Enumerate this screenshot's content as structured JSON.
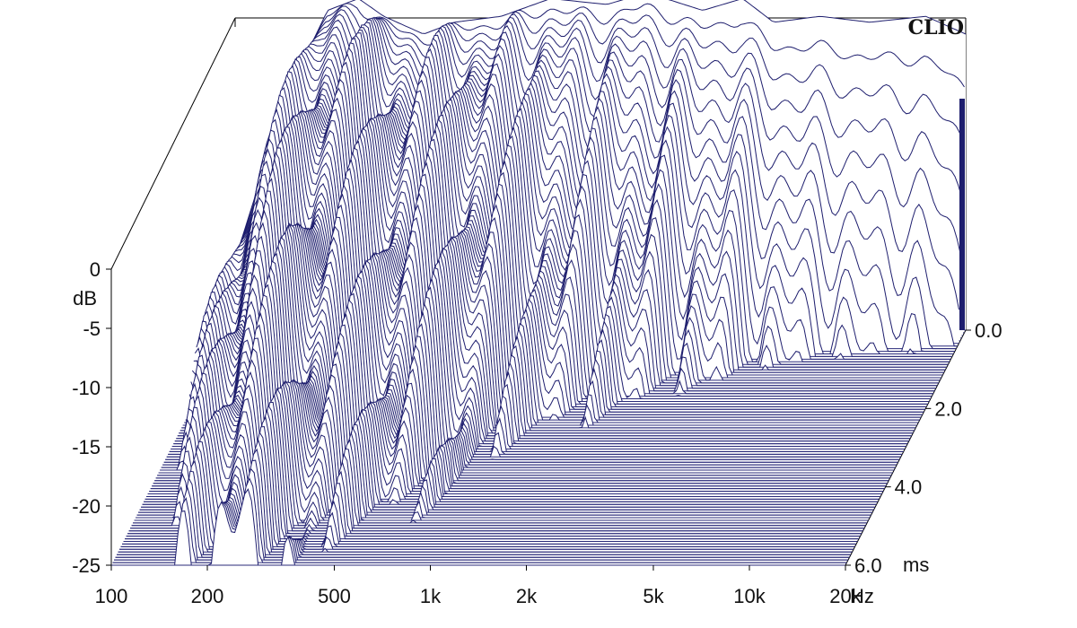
{
  "chart_data": {
    "type": "waterfall",
    "brand": "CLIO",
    "ylabel": "dB",
    "x_scale": "log",
    "x_unit_label": "Hz",
    "xlim": [
      100,
      20000
    ],
    "x_ticks": [
      {
        "value": 100,
        "label": "100"
      },
      {
        "value": 200,
        "label": "200"
      },
      {
        "value": 500,
        "label": "500"
      },
      {
        "value": 1000,
        "label": "1k"
      },
      {
        "value": 2000,
        "label": "2k"
      },
      {
        "value": 5000,
        "label": "5k"
      },
      {
        "value": 10000,
        "label": "10k"
      },
      {
        "value": 20000,
        "label": "20k"
      }
    ],
    "ylim": [
      -25,
      0
    ],
    "y_ticks": [
      0,
      -5,
      -10,
      -15,
      -20,
      -25
    ],
    "time_unit_label": "ms",
    "tlim": [
      0,
      6
    ],
    "time_ticks": [
      {
        "value": 0,
        "label": "0.0"
      },
      {
        "value": 2,
        "label": "2.0"
      },
      {
        "value": 4,
        "label": "4.0"
      },
      {
        "value": 6,
        "label": "6.0"
      }
    ],
    "slice_count": 90,
    "initial_response": {
      "freq": [
        100,
        150,
        200,
        250,
        300,
        400,
        500,
        700,
        1000,
        1500,
        2000,
        3000,
        4000,
        5000,
        7000,
        10000,
        15000,
        20000
      ],
      "db": [
        -20,
        -5,
        2,
        3,
        1.5,
        0,
        1,
        1.5,
        3,
        2.5,
        3.5,
        2,
        3,
        1,
        1.5,
        1,
        1.5,
        0
      ]
    },
    "decay_time_ms": {
      "freq": [
        100,
        150,
        200,
        250,
        300,
        400,
        500,
        700,
        800,
        900,
        1000,
        1500,
        2000,
        3000,
        4000,
        5000,
        7000,
        10000,
        15000,
        20000
      ],
      "t_to_minus25db": [
        6,
        6,
        6,
        6,
        5.5,
        5,
        4.5,
        4,
        3.5,
        3,
        2.5,
        2,
        1.7,
        1.3,
        1.1,
        0.9,
        0.7,
        0.6,
        0.5,
        0.4
      ]
    },
    "colors": {
      "line": "#1e1e6e",
      "floor": "#2a2a7a",
      "axis": "#000000",
      "background": "#ffffff"
    },
    "grid": false,
    "legend": "none"
  }
}
